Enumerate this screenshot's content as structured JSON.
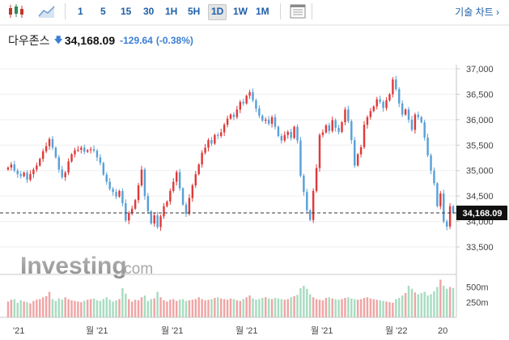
{
  "toolbar": {
    "timeframes": [
      "1",
      "5",
      "15",
      "30",
      "1H",
      "5H",
      "1D",
      "1W",
      "1M"
    ],
    "active_timeframe": "1D",
    "technical_chart_label": "기술 차트 ›"
  },
  "quote": {
    "name": "다우존스",
    "price": "34,168.09",
    "change": "-129.64",
    "change_pct": "(-0.38%)",
    "direction": "down"
  },
  "watermark": {
    "brand": "Investing",
    "suffix": ".com"
  },
  "colors": {
    "up": "#e03a3a",
    "down": "#5aa0d6",
    "vol_up": "#f0a4a4",
    "vol_down": "#a7dcc0",
    "accent": "#1f5fa9"
  },
  "chart_data": {
    "type": "candlestick",
    "y_ticks": [
      "37,000",
      "36,500",
      "36,000",
      "35,500",
      "35,000",
      "34,500",
      "34,000",
      "33,500"
    ],
    "ylim": [
      33000,
      37100
    ],
    "last_price": 34168.09,
    "last_price_label": "34,168.09",
    "volume_ticks": [
      "500m",
      "250m"
    ],
    "volume_ylim": [
      0,
      680
    ],
    "x_labels": [
      "'21",
      "월 '21",
      "월 '21",
      "월 '21",
      "월 '21",
      "월 '22",
      "20"
    ],
    "grid": true,
    "close": [
      35060,
      35120,
      35000,
      34930,
      34890,
      34960,
      34820,
      34930,
      35020,
      35100,
      35230,
      35380,
      35480,
      35620,
      35450,
      35260,
      35020,
      34870,
      34960,
      35180,
      35320,
      35400,
      35410,
      35450,
      35370,
      35400,
      35420,
      35390,
      35260,
      35150,
      34920,
      34780,
      34640,
      34580,
      34490,
      34600,
      34360,
      34020,
      34170,
      34250,
      34420,
      34710,
      35020,
      34500,
      34200,
      33960,
      34120,
      33890,
      34100,
      34300,
      34390,
      34600,
      34780,
      34970,
      34650,
      34330,
      34150,
      34460,
      34710,
      34930,
      35120,
      35350,
      35450,
      35600,
      35530,
      35700,
      35680,
      35750,
      35900,
      36020,
      36100,
      36050,
      36200,
      36350,
      36320,
      36470,
      36540,
      36380,
      36220,
      36080,
      35980,
      36000,
      35920,
      36050,
      35860,
      35680,
      35590,
      35700,
      35760,
      35640,
      35860,
      35590,
      34900,
      34580,
      34220,
      34030,
      34600,
      35050,
      35700,
      35750,
      35890,
      35780,
      35990,
      35840,
      35760,
      35950,
      36200,
      35970,
      35600,
      35100,
      35320,
      35460,
      35900,
      36050,
      36170,
      36260,
      36400,
      36350,
      36230,
      36380,
      36500,
      36790,
      36600,
      36320,
      36100,
      36200,
      36000,
      35800,
      36100,
      36050,
      35950,
      35650,
      35300,
      35000,
      34750,
      34300,
      34550,
      34000,
      33900,
      34300,
      34168
    ]
  },
  "volume_values": [
    260,
    290,
    300,
    240,
    280,
    260,
    250,
    230,
    270,
    290,
    300,
    330,
    350,
    420,
    300,
    270,
    310,
    290,
    330,
    300,
    280,
    270,
    260,
    250,
    270,
    290,
    300,
    310,
    280,
    270,
    300,
    330,
    290,
    260,
    280,
    300,
    480,
    390,
    300,
    260,
    290,
    280,
    330,
    360,
    270,
    300,
    310,
    420,
    330,
    280,
    260,
    290,
    300,
    270,
    290,
    300,
    270,
    280,
    290,
    300,
    330,
    300,
    280,
    290,
    300,
    320,
    330,
    310,
    300,
    290,
    310,
    300,
    280,
    270,
    300,
    330,
    360,
    310,
    290,
    300,
    320,
    330,
    310,
    300,
    320,
    310,
    300,
    290,
    300,
    330,
    350,
    370,
    480,
    520,
    470,
    380,
    330,
    300,
    290,
    280,
    320,
    330,
    310,
    300,
    290,
    300,
    320,
    330,
    310,
    300,
    290,
    300,
    320,
    330,
    310,
    300,
    290,
    280,
    270,
    260,
    250,
    240,
    300,
    320,
    360,
    400,
    520,
    470,
    410,
    380,
    400,
    420,
    360,
    380,
    430,
    500,
    620,
    520,
    470,
    500,
    480
  ]
}
